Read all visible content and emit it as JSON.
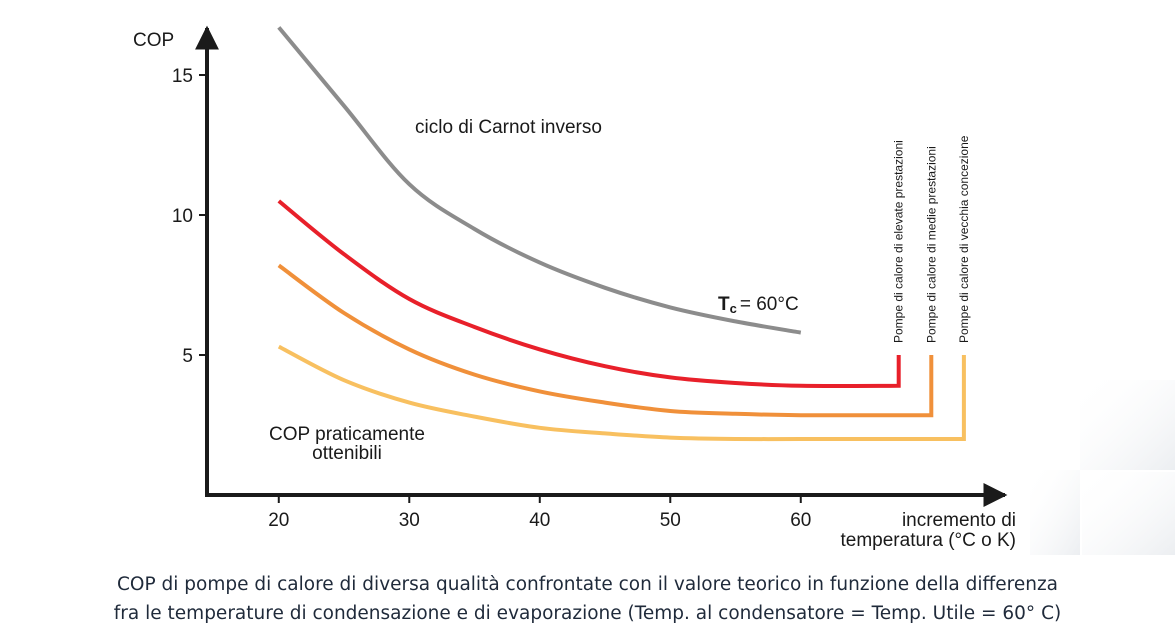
{
  "caption": {
    "line1": "COP di pompe di calore di diversa qualità confrontate con il valore teorico in funzione della differenza",
    "line2": "fra le temperature di condensazione e di evaporazione (Temp. al condensatore = Temp. Utile = 60° C)"
  },
  "chart_data": {
    "type": "line",
    "ylabel": "COP",
    "xlabel_line1": "incremento di",
    "xlabel_line2": "temperatura (°C o K)",
    "xlim": [
      14.5,
      100
    ],
    "ylim": [
      0,
      17.5
    ],
    "x_ticks": [
      20,
      30,
      40,
      50,
      60
    ],
    "y_ticks": [
      5,
      10,
      15
    ],
    "grid": false,
    "colors": {
      "axis": "#1a1a1a",
      "carnot": "#8c8c8c",
      "high": "#e8202a",
      "medium": "#f0903a",
      "old": "#f8c060"
    },
    "annotations": {
      "carnot_label": "ciclo di Carnot inverso",
      "tc_symbol": "T",
      "tc_sub": "c",
      "tc_value": "= 60°C",
      "practical_line1": "COP praticamente",
      "practical_line2": "ottenibili"
    },
    "series": [
      {
        "name": "ciclo di Carnot inverso",
        "key": "carnot",
        "x": [
          20,
          25,
          30,
          35,
          40,
          45,
          50,
          55,
          60
        ],
        "y": [
          16.7,
          13.9,
          11.1,
          9.5,
          8.3,
          7.4,
          6.7,
          6.2,
          5.8
        ],
        "end_x": 60,
        "drop_to": null
      },
      {
        "name": "Pompe di calore di elevate prestazioni",
        "key": "high",
        "x": [
          20,
          25,
          30,
          35,
          40,
          45,
          50,
          55,
          60,
          67.5
        ],
        "y": [
          10.5,
          8.6,
          7.0,
          6.0,
          5.2,
          4.6,
          4.2,
          4.0,
          3.9,
          3.9
        ],
        "end_x": 67.5,
        "drop_to": 5
      },
      {
        "name": "Pompe di calore di medie prestazioni",
        "key": "medium",
        "x": [
          20,
          25,
          30,
          35,
          40,
          45,
          50,
          55,
          60,
          65,
          70
        ],
        "y": [
          8.2,
          6.5,
          5.2,
          4.3,
          3.7,
          3.3,
          3.0,
          2.9,
          2.85,
          2.85,
          2.85
        ],
        "end_x": 70,
        "drop_to": 5
      },
      {
        "name": "Pompe di calore di vecchia concezione",
        "key": "old",
        "x": [
          20,
          25,
          30,
          35,
          40,
          45,
          50,
          55,
          60,
          65,
          72.5
        ],
        "y": [
          5.3,
          4.1,
          3.3,
          2.8,
          2.4,
          2.2,
          2.05,
          2.0,
          2.0,
          2.0,
          2.0
        ],
        "end_x": 72.5,
        "drop_to": 5
      }
    ]
  }
}
